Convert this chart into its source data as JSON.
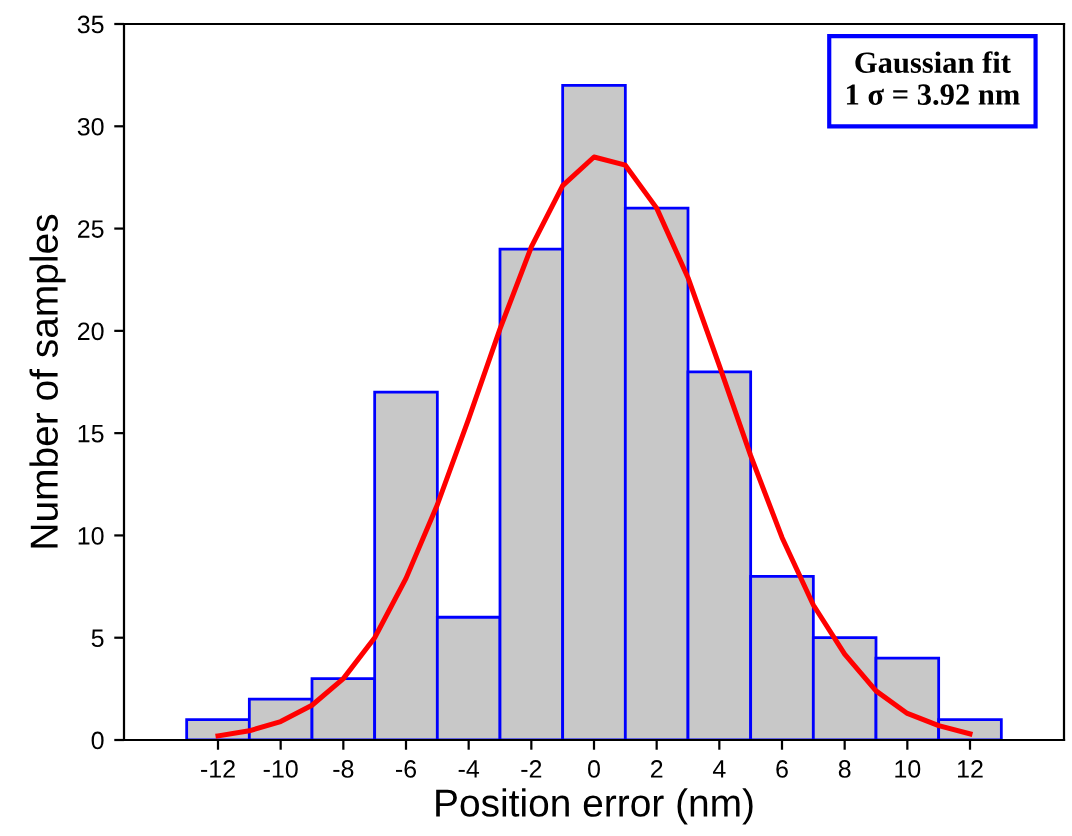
{
  "chart_data": {
    "type": "histogram",
    "xlabel": "Position error (nm)",
    "ylabel": "Number of samples",
    "bins": [
      -13,
      -11,
      -9,
      -7,
      -5,
      -3,
      -1,
      1,
      3,
      5,
      7,
      9,
      11,
      13
    ],
    "values": [
      1,
      2,
      3,
      17,
      6,
      24,
      32,
      26,
      18,
      8,
      5,
      4,
      1
    ],
    "color": "#c8c8c8",
    "series": [
      {
        "type": "line",
        "color": "#ff0000",
        "x": [
          -12,
          -11,
          -10,
          -9,
          -8,
          -7,
          -6,
          -5,
          -4,
          -3,
          -2,
          -1,
          0,
          1,
          2,
          3,
          4,
          5,
          6,
          7,
          8,
          9,
          10,
          11,
          12
        ],
        "values": [
          0.2,
          0.45,
          0.9,
          1.7,
          3.0,
          5.0,
          7.9,
          11.5,
          15.7,
          20.1,
          24.1,
          27.1,
          28.5,
          28.1,
          26.0,
          22.6,
          18.3,
          13.9,
          9.9,
          6.6,
          4.2,
          2.4,
          1.3,
          0.7,
          0.3
        ]
      }
    ],
    "xlim": [
      -15,
      15
    ],
    "xticks": [
      -12,
      -10,
      -8,
      -6,
      -4,
      -2,
      0,
      2,
      4,
      6,
      8,
      10,
      12
    ],
    "ylim": [
      0,
      35
    ],
    "yticks": [
      0,
      5,
      10,
      15,
      20,
      25,
      30,
      35
    ],
    "annotations": [
      "Gaussian fit\n1 σ = 3.92 nm"
    ],
    "grid": false,
    "legend": false,
    "marker": "none",
    "line_style": "solid"
  }
}
